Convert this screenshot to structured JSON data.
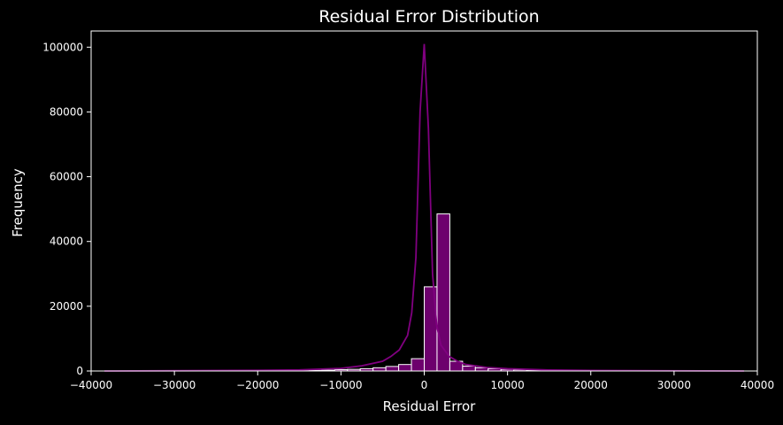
{
  "chart_data": {
    "type": "bar",
    "title": "Residual Error Distribution",
    "xlabel": "Residual Error",
    "ylabel": "Frequency",
    "xlim": [
      -40000,
      40000
    ],
    "ylim": [
      0,
      105000
    ],
    "xticks": [
      -40000,
      -30000,
      -20000,
      -10000,
      0,
      10000,
      20000,
      30000,
      40000
    ],
    "xtick_labels": [
      "−40000",
      "−30000",
      "−20000",
      "−10000",
      "0",
      "10000",
      "20000",
      "30000",
      "40000"
    ],
    "yticks": [
      0,
      20000,
      40000,
      60000,
      80000,
      100000
    ],
    "ytick_labels": [
      "0",
      "20000",
      "40000",
      "60000",
      "80000",
      "100000"
    ],
    "grid": false,
    "legend": "none",
    "bin_edges": [
      -38400,
      -36864,
      -35328,
      -33792,
      -32256,
      -30720,
      -29184,
      -27648,
      -26112,
      -24576,
      -23040,
      -21504,
      -19968,
      -18432,
      -16896,
      -15360,
      -13824,
      -12288,
      -10752,
      -9216,
      -7680,
      -6144,
      -4608,
      -3072,
      -1536,
      0,
      1536,
      3072,
      4608,
      6144,
      7680,
      9216,
      10752,
      12288,
      13824,
      15360,
      16896,
      18432,
      19968,
      21504,
      23040,
      24576,
      26112,
      27648,
      29184,
      30720,
      32256,
      33792,
      35328,
      36864,
      38400
    ],
    "values": [
      0,
      0,
      0,
      0,
      0,
      0,
      0,
      0,
      0,
      0,
      0,
      0,
      0,
      0,
      0,
      100,
      200,
      250,
      400,
      500,
      700,
      1000,
      1400,
      2000,
      3800,
      26000,
      48500,
      3000,
      1500,
      1000,
      700,
      500,
      350,
      250,
      150,
      100,
      0,
      0,
      0,
      0,
      0,
      0,
      0,
      0,
      0,
      0,
      0,
      0,
      0,
      0
    ],
    "kde": {
      "x": [
        -38400,
        -30000,
        -20000,
        -15000,
        -10000,
        -7500,
        -5000,
        -4000,
        -3000,
        -2000,
        -1500,
        -1000,
        -500,
        0,
        500,
        1000,
        1500,
        2000,
        3000,
        4000,
        5000,
        7500,
        10000,
        15000,
        20000,
        30000,
        38400
      ],
      "y": [
        0,
        80,
        200,
        350,
        800,
        1600,
        3000,
        4500,
        6500,
        11000,
        18000,
        35000,
        80000,
        101000,
        75000,
        30000,
        14000,
        8000,
        4500,
        3000,
        2000,
        1100,
        700,
        300,
        150,
        60,
        0
      ]
    },
    "colors": {
      "bar_fill": "#800080",
      "bar_edge": "#ffffff",
      "kde_line": "#800080",
      "background": "#000000",
      "text": "#ffffff"
    }
  }
}
